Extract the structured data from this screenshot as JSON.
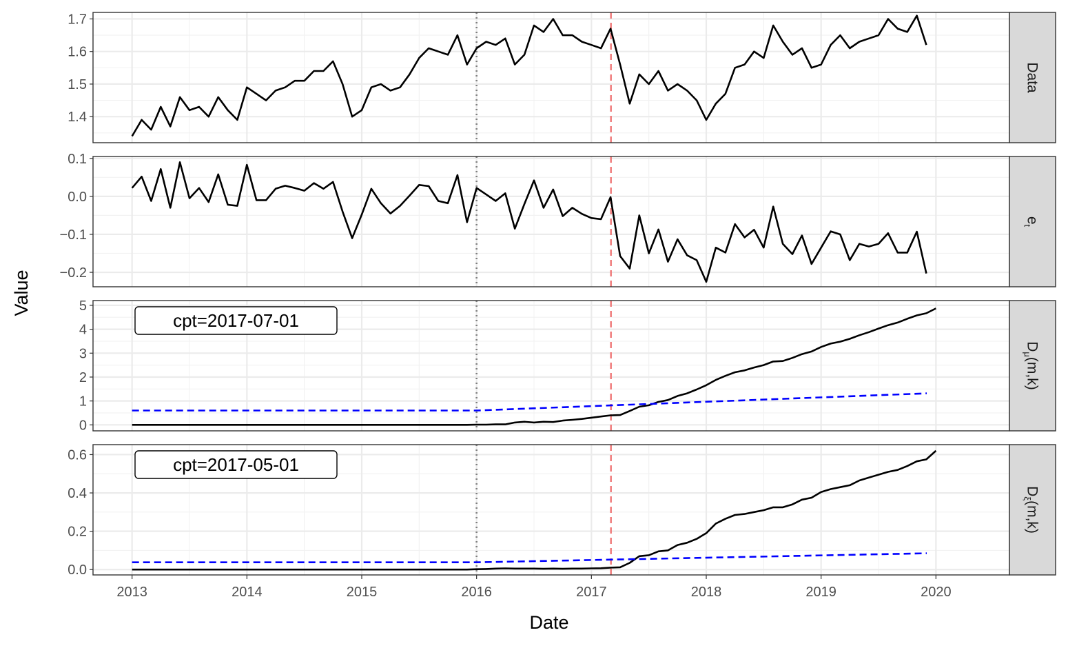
{
  "chart_data": {
    "type": "line",
    "xlabel": "Date",
    "ylabel": "Value",
    "xlim": [
      2012.66,
      2020.64
    ],
    "x_ticks": [
      2013,
      2014,
      2015,
      2016,
      2017,
      2018,
      2019,
      2020
    ],
    "x_tick_labels": [
      "2013",
      "2014",
      "2015",
      "2016",
      "2017",
      "2018",
      "2019",
      "2020"
    ],
    "start_date": "2013-01",
    "freq": "monthly",
    "grid": true,
    "theme": "bw",
    "vlines": [
      {
        "x": 2016.0,
        "color": "#808080",
        "style": "dotted"
      },
      {
        "x": 2017.17,
        "color": "#f08080",
        "style": "dashed"
      }
    ],
    "panels": [
      {
        "strip": "Data",
        "ylim": [
          1.32,
          1.72
        ],
        "y_ticks": [
          1.4,
          1.5,
          1.6,
          1.7
        ],
        "y_tick_labels": [
          "1.4",
          "1.5",
          "1.6",
          "1.7"
        ],
        "series": [
          {
            "color": "#000000",
            "style": "solid",
            "values": [
              1.34,
              1.39,
              1.36,
              1.43,
              1.37,
              1.46,
              1.42,
              1.43,
              1.4,
              1.46,
              1.42,
              1.39,
              1.49,
              1.47,
              1.45,
              1.48,
              1.49,
              1.51,
              1.51,
              1.54,
              1.54,
              1.57,
              1.5,
              1.4,
              1.42,
              1.49,
              1.5,
              1.48,
              1.49,
              1.53,
              1.58,
              1.61,
              1.6,
              1.59,
              1.65,
              1.56,
              1.61,
              1.63,
              1.62,
              1.64,
              1.56,
              1.59,
              1.68,
              1.66,
              1.7,
              1.65,
              1.65,
              1.63,
              1.62,
              1.61,
              1.67,
              1.56,
              1.44,
              1.53,
              1.5,
              1.54,
              1.48,
              1.5,
              1.48,
              1.45,
              1.39,
              1.44,
              1.47,
              1.55,
              1.56,
              1.6,
              1.58,
              1.68,
              1.63,
              1.59,
              1.61,
              1.55,
              1.56,
              1.62,
              1.65,
              1.61,
              1.63,
              1.64,
              1.65,
              1.7,
              1.67,
              1.66,
              1.71,
              1.62
            ]
          }
        ]
      },
      {
        "strip": "e",
        "strip_sub": "t",
        "ylim": [
          -0.238,
          0.105
        ],
        "y_ticks": [
          -0.2,
          -0.1,
          0.0,
          0.1
        ],
        "y_tick_labels": [
          "−0.2",
          "−0.1",
          "0.0",
          "0.1"
        ],
        "series": [
          {
            "color": "#000000",
            "style": "solid",
            "values": [
              0.022,
              0.052,
              -0.012,
              0.072,
              -0.03,
              0.09,
              -0.005,
              0.022,
              -0.015,
              0.058,
              -0.022,
              -0.025,
              0.083,
              -0.01,
              -0.01,
              0.02,
              0.028,
              0.022,
              0.015,
              0.035,
              0.02,
              0.038,
              -0.04,
              -0.11,
              -0.048,
              0.02,
              -0.018,
              -0.045,
              -0.025,
              0.002,
              0.03,
              0.027,
              -0.012,
              -0.018,
              0.056,
              -0.068,
              0.022,
              0.005,
              -0.012,
              0.008,
              -0.085,
              -0.02,
              0.042,
              -0.03,
              0.018,
              -0.052,
              -0.03,
              -0.046,
              -0.057,
              -0.06,
              -0.002,
              -0.157,
              -0.19,
              -0.05,
              -0.15,
              -0.087,
              -0.172,
              -0.113,
              -0.155,
              -0.168,
              -0.225,
              -0.135,
              -0.148,
              -0.073,
              -0.108,
              -0.088,
              -0.135,
              -0.027,
              -0.125,
              -0.152,
              -0.103,
              -0.178,
              -0.135,
              -0.092,
              -0.1,
              -0.168,
              -0.125,
              -0.132,
              -0.125,
              -0.097,
              -0.148,
              -0.148,
              -0.093,
              -0.203
            ]
          }
        ]
      },
      {
        "strip": "D",
        "strip_sub": "μ",
        "strip_suffix": "(m,k)",
        "ylim": [
          -0.25,
          5.2
        ],
        "y_ticks": [
          0,
          1,
          2,
          3,
          4,
          5
        ],
        "y_tick_labels": [
          "0",
          "1",
          "2",
          "3",
          "4",
          "5"
        ],
        "annotation": "cpt=2017-07-01",
        "series": [
          {
            "color": "#000000",
            "style": "solid",
            "values": [
              0,
              0,
              0,
              0,
              0,
              0,
              0,
              0,
              0,
              0,
              0,
              0,
              0,
              0,
              0,
              0,
              0,
              0,
              0,
              0,
              0,
              0,
              0,
              0,
              0,
              0,
              0,
              0,
              0,
              0,
              0,
              0,
              0,
              0,
              0,
              0,
              0.01,
              0.01,
              0.02,
              0.02,
              0.1,
              0.13,
              0.1,
              0.13,
              0.12,
              0.18,
              0.21,
              0.25,
              0.3,
              0.35,
              0.4,
              0.41,
              0.58,
              0.76,
              0.82,
              0.96,
              1.04,
              1.21,
              1.32,
              1.48,
              1.66,
              1.88,
              2.05,
              2.2,
              2.28,
              2.4,
              2.5,
              2.65,
              2.67,
              2.8,
              2.96,
              3.07,
              3.26,
              3.4,
              3.48,
              3.6,
              3.75,
              3.88,
              4.03,
              4.17,
              4.28,
              4.44,
              4.58,
              4.67,
              4.87
            ]
          },
          {
            "color": "#0000ff",
            "style": "dashed",
            "points": [
              [
                2013.0,
                0.6
              ],
              [
                2016.0,
                0.6
              ],
              [
                2019.92,
                1.32
              ]
            ]
          }
        ]
      },
      {
        "strip": "D",
        "strip_sub": "ξ",
        "strip_suffix": "(m,k)",
        "ylim": [
          -0.028,
          0.652
        ],
        "y_ticks": [
          0.0,
          0.2,
          0.4,
          0.6
        ],
        "y_tick_labels": [
          "0.0",
          "0.2",
          "0.4",
          "0.6"
        ],
        "annotation": "cpt=2017-05-01",
        "series": [
          {
            "color": "#000000",
            "style": "solid",
            "values": [
              0,
              0,
              0,
              0,
              0,
              0,
              0,
              0,
              0,
              0,
              0,
              0,
              0,
              0,
              0,
              0,
              0,
              0,
              0,
              0,
              0,
              0,
              0,
              0,
              0,
              0,
              0,
              0,
              0,
              0,
              0,
              0,
              0,
              0,
              0,
              0,
              0.002,
              0.003,
              0.005,
              0.006,
              0.005,
              0.005,
              0.005,
              0.004,
              0.005,
              0.004,
              0.005,
              0.005,
              0.006,
              0.007,
              0.01,
              0.012,
              0.035,
              0.07,
              0.075,
              0.095,
              0.1,
              0.128,
              0.14,
              0.16,
              0.19,
              0.24,
              0.265,
              0.285,
              0.29,
              0.3,
              0.31,
              0.325,
              0.325,
              0.34,
              0.365,
              0.375,
              0.405,
              0.42,
              0.43,
              0.44,
              0.465,
              0.48,
              0.495,
              0.51,
              0.52,
              0.54,
              0.565,
              0.575,
              0.62
            ]
          },
          {
            "color": "#0000ff",
            "style": "dashed",
            "points": [
              [
                2013.0,
                0.038
              ],
              [
                2016.0,
                0.038
              ],
              [
                2019.92,
                0.085
              ]
            ]
          }
        ]
      }
    ]
  }
}
